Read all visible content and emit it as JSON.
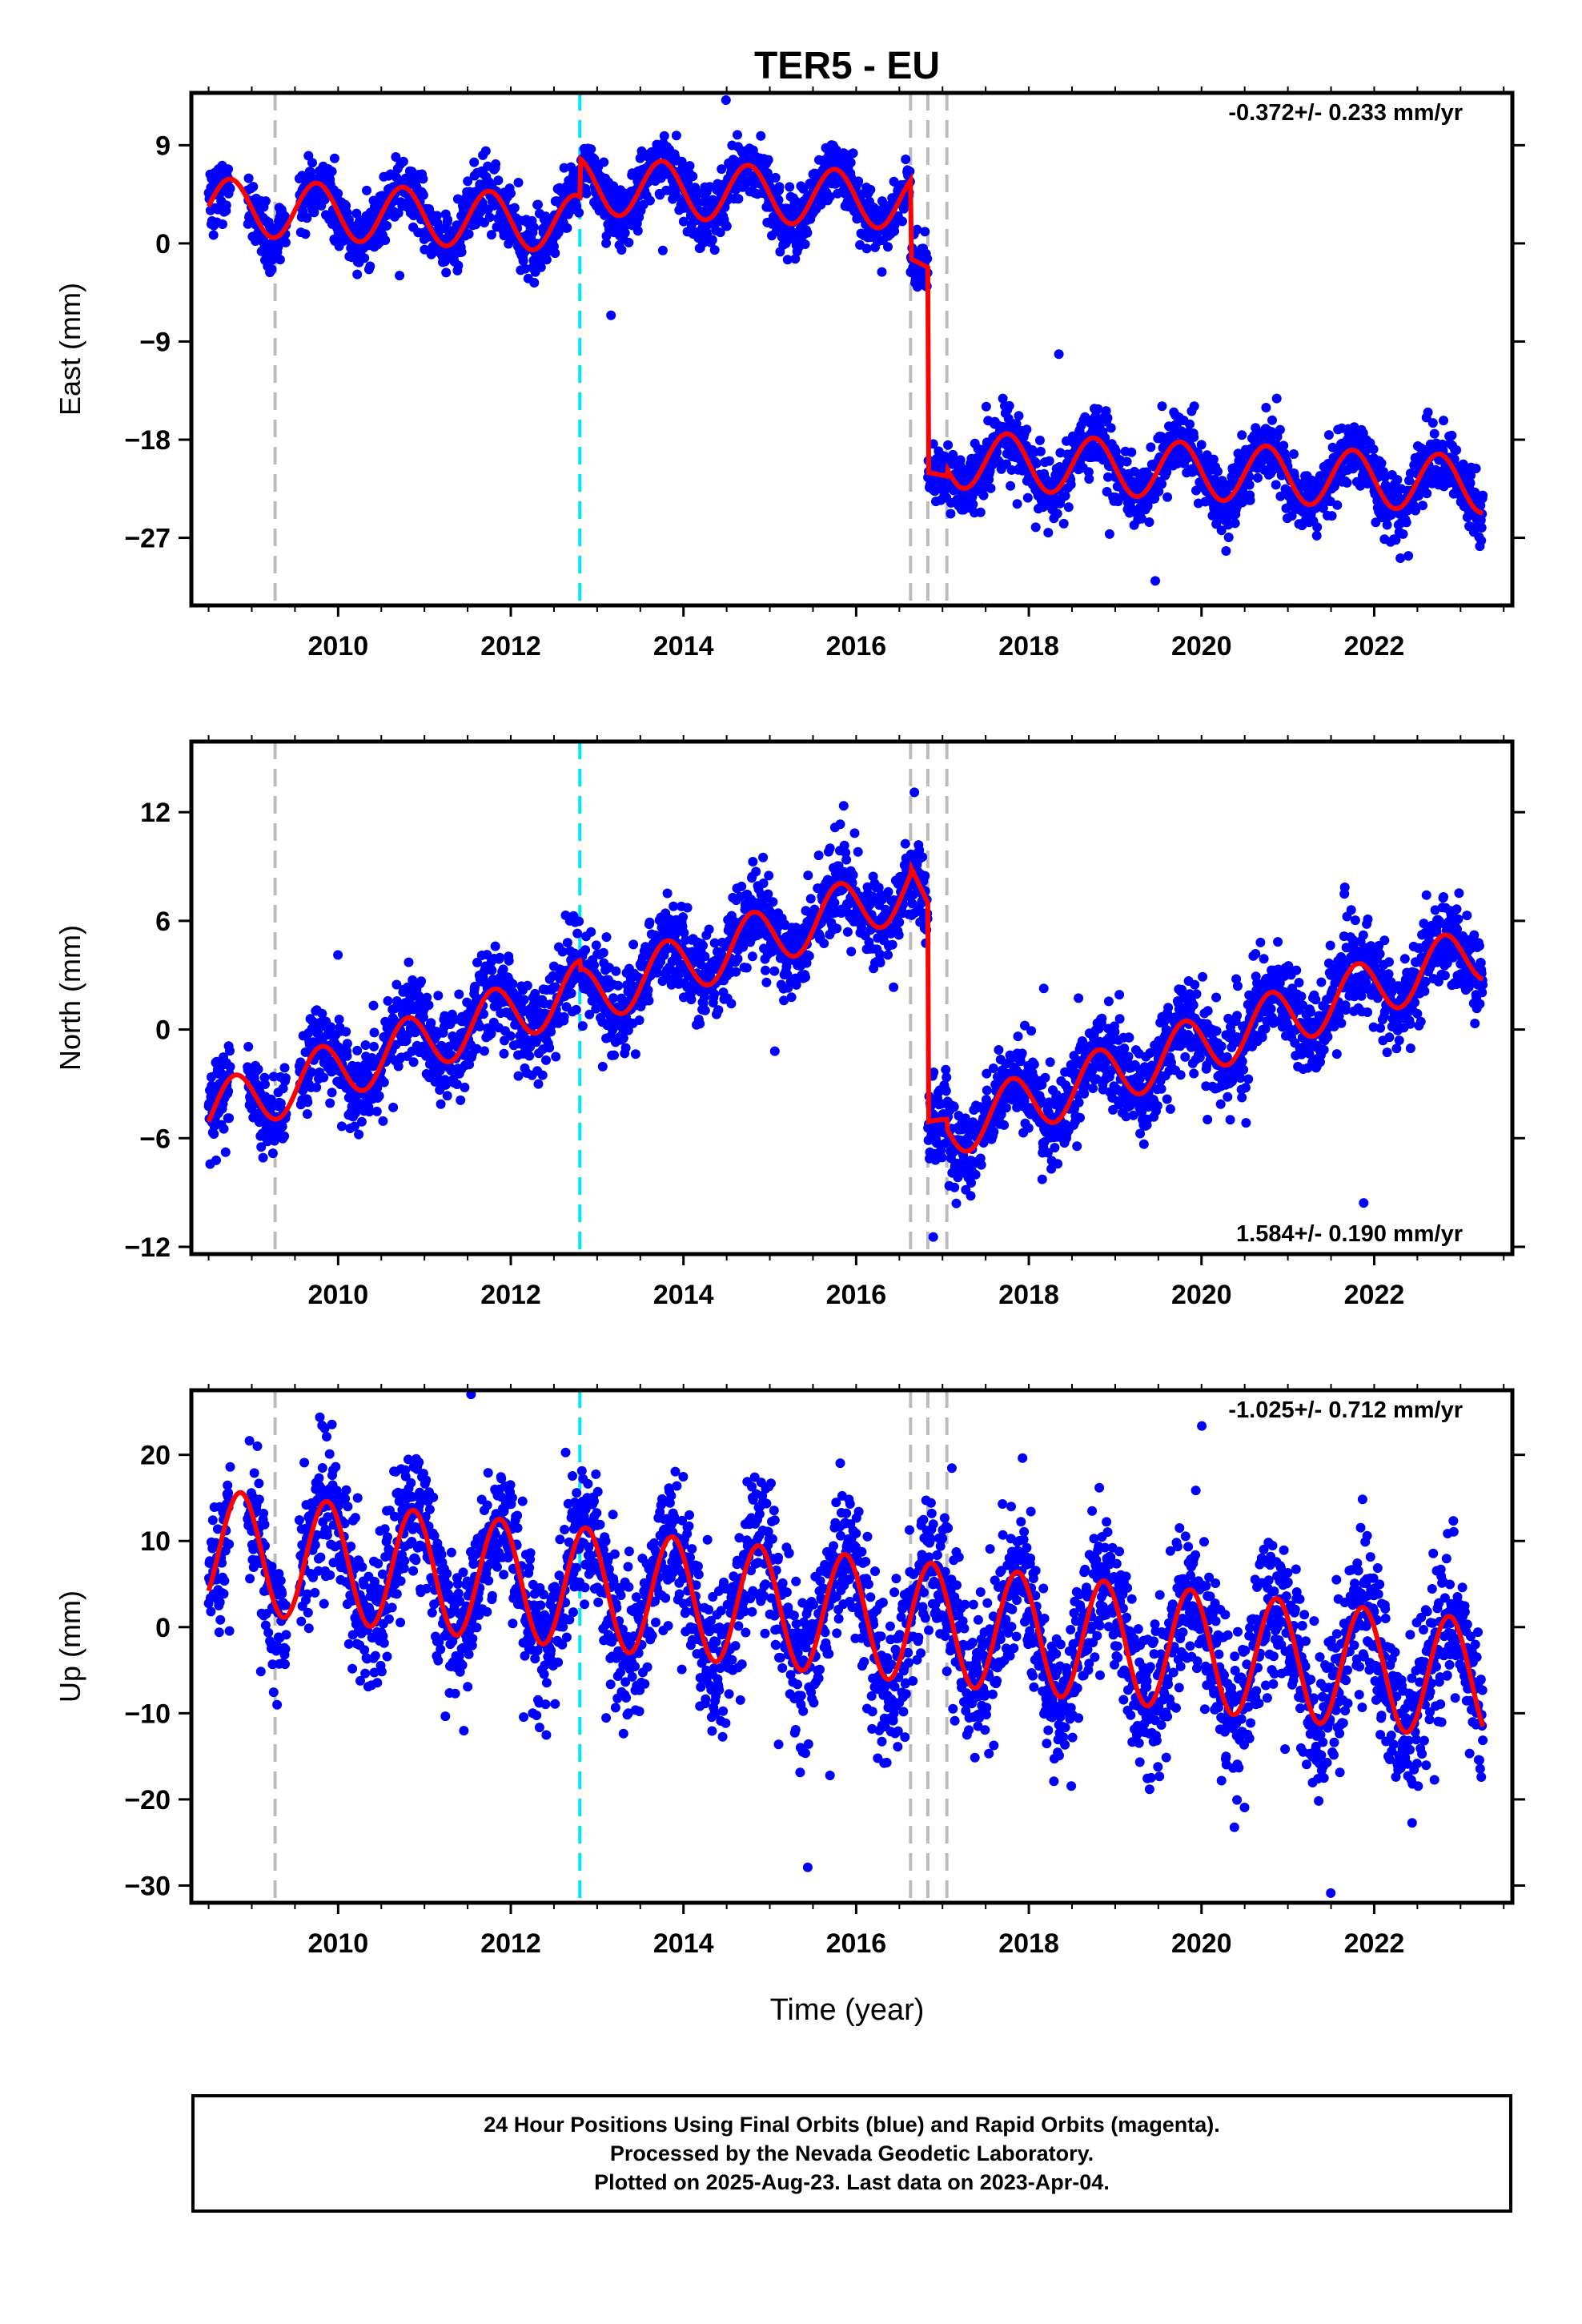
{
  "title": "TER5 - EU",
  "xlabel": "Time (year)",
  "footer": {
    "line1": "24 Hour Positions Using Final Orbits (blue) and Rapid Orbits (magenta).",
    "line2": "Processed by the Nevada Geodetic Laboratory.",
    "line3": "Plotted on 2025-Aug-23. Last data on 2023-Apr-04."
  },
  "colors": {
    "data_points": "#0000ff",
    "model_fit": "#ff0000",
    "event_gray": "#bbbbbb",
    "event_cyan": "#00e5ee"
  },
  "chart_data": [
    {
      "type": "scatter",
      "panel": "east",
      "ylabel": "East (mm)",
      "rate_label": "-0.372+/- 0.233 mm/yr",
      "rate_position": "top-right",
      "xlim": [
        2008.3,
        2023.6
      ],
      "ylim": [
        -33.2,
        13.8
      ],
      "yticks": [
        9,
        0,
        -9,
        -18,
        -27
      ],
      "yticklabels": [
        "9",
        "0",
        "−9",
        "−18",
        "−27"
      ],
      "xticks": [
        2010,
        2012,
        2014,
        2016,
        2018,
        2020,
        2022
      ],
      "data_span": [
        2008.5,
        2023.26
      ],
      "event_lines": [
        {
          "x": 2009.27,
          "color": "gray"
        },
        {
          "x": 2012.8,
          "color": "cyan"
        },
        {
          "x": 2016.63,
          "color": "gray"
        },
        {
          "x": 2016.83,
          "color": "gray"
        },
        {
          "x": 2017.05,
          "color": "gray"
        }
      ],
      "model_segments": [
        {
          "t0": 2008.5,
          "t1": 2012.8,
          "offset": 3.4,
          "rate": -0.372,
          "amp": 2.6,
          "phase": 0.5
        },
        {
          "t0": 2012.8,
          "t1": 2016.63,
          "offset": 5.3,
          "rate": -0.372,
          "amp": 2.6,
          "phase": 0.5
        },
        {
          "t0": 2016.63,
          "t1": 2016.83,
          "offset": -1.4,
          "rate": -4.0,
          "amp": 0.0,
          "phase": 0.5
        },
        {
          "t0": 2016.83,
          "t1": 2017.05,
          "offset": -21.2,
          "rate": -0.372,
          "amp": 0.2,
          "phase": 0.5
        },
        {
          "t0": 2017.05,
          "t1": 2023.26,
          "offset": -19.8,
          "rate": -0.372,
          "amp": 2.6,
          "phase": 0.5
        }
      ],
      "scatter_sd": 1.4
    },
    {
      "type": "scatter",
      "panel": "north",
      "ylabel": "North (mm)",
      "rate_label": "1.584+/- 0.190 mm/yr",
      "rate_position": "bottom-right",
      "xlim": [
        2008.3,
        2023.6
      ],
      "ylim": [
        -12.4,
        15.9
      ],
      "yticks": [
        12,
        6,
        0,
        -6,
        -12
      ],
      "yticklabels": [
        "12",
        "6",
        "0",
        "−6",
        "−12"
      ],
      "xticks": [
        2010,
        2012,
        2014,
        2016,
        2018,
        2020,
        2022
      ],
      "data_span": [
        2008.5,
        2023.26
      ],
      "event_lines": [
        {
          "x": 2009.27,
          "color": "gray"
        },
        {
          "x": 2012.8,
          "color": "cyan"
        },
        {
          "x": 2016.63,
          "color": "gray"
        },
        {
          "x": 2016.83,
          "color": "gray"
        },
        {
          "x": 2017.05,
          "color": "gray"
        }
      ],
      "model_segments": [
        {
          "t0": 2008.5,
          "t1": 2012.8,
          "offset": -4.6,
          "rate": 1.584,
          "amp": 1.6,
          "phase": 0.55
        },
        {
          "t0": 2012.8,
          "t1": 2016.63,
          "offset": 1.7,
          "rate": 1.584,
          "amp": 1.6,
          "phase": 0.55
        },
        {
          "t0": 2016.63,
          "t1": 2016.83,
          "offset": 9.0,
          "rate": -10.0,
          "amp": 0.0,
          "phase": 0.55
        },
        {
          "t0": 2016.83,
          "t1": 2017.05,
          "offset": -5.3,
          "rate": 1.584,
          "amp": 0.2,
          "phase": 0.55
        },
        {
          "t0": 2017.05,
          "t1": 2023.26,
          "offset": -5.5,
          "rate": 1.584,
          "amp": 1.6,
          "phase": 0.55
        }
      ],
      "scatter_sd": 1.2
    },
    {
      "type": "scatter",
      "panel": "up",
      "ylabel": "Up (mm)",
      "rate_label": "-1.025+/- 0.712 mm/yr",
      "rate_position": "top-right",
      "xlim": [
        2008.3,
        2023.6
      ],
      "ylim": [
        -32.0,
        27.5
      ],
      "yticks": [
        20,
        10,
        0,
        -10,
        -20,
        -30
      ],
      "yticklabels": [
        "20",
        "10",
        "0",
        "−10",
        "−20",
        "−30"
      ],
      "xticks": [
        2010,
        2012,
        2014,
        2016,
        2018,
        2020,
        2022
      ],
      "data_span": [
        2008.5,
        2023.26
      ],
      "event_lines": [
        {
          "x": 2009.27,
          "color": "gray"
        },
        {
          "x": 2012.8,
          "color": "cyan"
        },
        {
          "x": 2016.63,
          "color": "gray"
        },
        {
          "x": 2016.83,
          "color": "gray"
        },
        {
          "x": 2017.05,
          "color": "gray"
        }
      ],
      "model_segments": [
        {
          "t0": 2008.5,
          "t1": 2023.26,
          "offset": 9.0,
          "rate": -1.025,
          "amp": 7.0,
          "phase": 0.62
        }
      ],
      "scatter_sd": 4.2
    }
  ]
}
